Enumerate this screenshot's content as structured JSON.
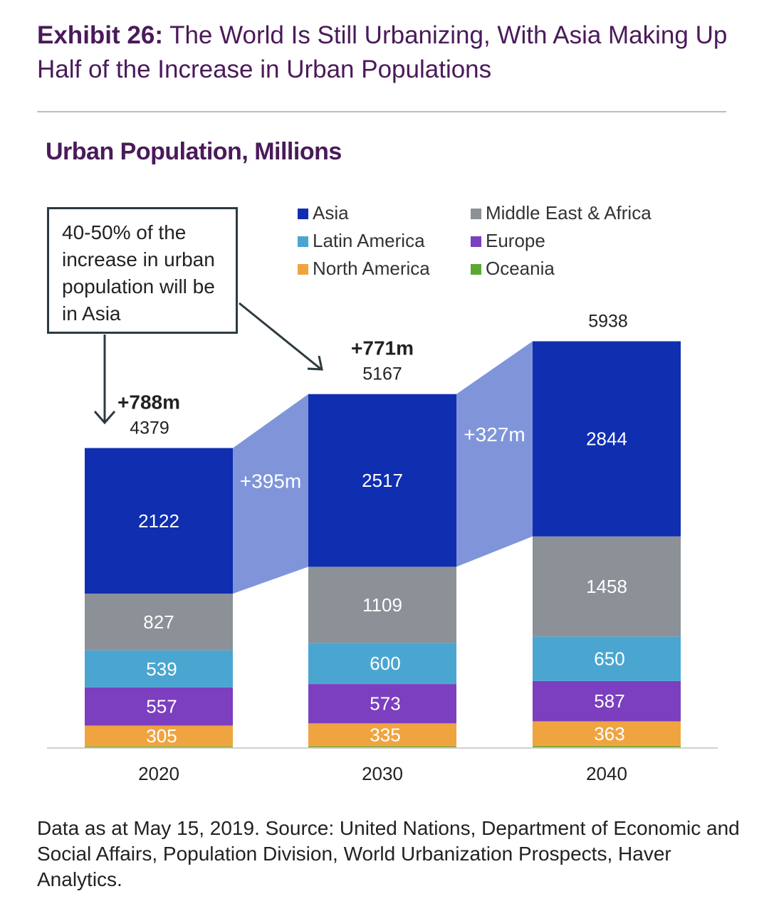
{
  "header": {
    "exhibit": "Exhibit 26:",
    "title": "The World Is Still Urbanizing, With Asia Making Up Half of the Increase in Urban Populations"
  },
  "subtitle": "Urban Population, Millions",
  "callout": "40-50% of the increase in urban population will be in Asia",
  "footnote": "Data as at May 15, 2019. Source: United Nations, Department of Economic and Social Affairs, Population Division, World Urbanization Prospects, Haver Analytics.",
  "chart_data": {
    "type": "bar",
    "stacked": true,
    "categories": [
      "2020",
      "2030",
      "2040"
    ],
    "totals": [
      4379,
      5167,
      5938
    ],
    "total_increase_labels": [
      "+788m",
      "+771m",
      ""
    ],
    "asia_increase_labels": [
      "+395m",
      "+327m"
    ],
    "series": [
      {
        "name": "Oceania",
        "values": [
          12,
          14,
          16
        ],
        "color": "#5aa832",
        "labels": [
          "",
          "",
          ""
        ]
      },
      {
        "name": "North America",
        "values": [
          305,
          335,
          363
        ],
        "color": "#f0a440",
        "labels": [
          "305",
          "335",
          "363"
        ]
      },
      {
        "name": "Europe",
        "values": [
          557,
          573,
          587
        ],
        "color": "#7b3fbf",
        "labels": [
          "557",
          "573",
          "587"
        ]
      },
      {
        "name": "Latin America",
        "values": [
          539,
          600,
          650
        ],
        "color": "#4aa6d1",
        "labels": [
          "539",
          "600",
          "650"
        ]
      },
      {
        "name": "Middle East & Africa",
        "values": [
          827,
          1109,
          1458
        ],
        "color": "#8b9196",
        "labels": [
          "827",
          "1109",
          "1458"
        ]
      },
      {
        "name": "Asia",
        "values": [
          2122,
          2517,
          2844
        ],
        "color": "#0f2eb0",
        "labels": [
          "2122",
          "2517",
          "2844"
        ]
      }
    ],
    "legend": [
      {
        "name": "Asia",
        "color": "#0f2eb0"
      },
      {
        "name": "Middle East & Africa",
        "color": "#8b9196"
      },
      {
        "name": "Latin America",
        "color": "#4aa6d1"
      },
      {
        "name": "Europe",
        "color": "#7b3fbf"
      },
      {
        "name": "North America",
        "color": "#f0a440"
      },
      {
        "name": "Oceania",
        "color": "#5aa832"
      }
    ],
    "connector_color": "#8095d9",
    "ylim": [
      0,
      6000
    ]
  }
}
